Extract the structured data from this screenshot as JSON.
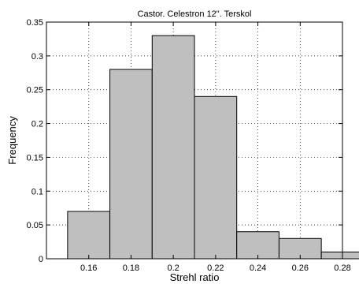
{
  "chart_data": {
    "type": "bar",
    "title": "Castor. Celestron 12\". Terskol",
    "xlabel": "Strehl ratio",
    "ylabel": "Frequency",
    "xlim": [
      0.14,
      0.28
    ],
    "ylim": [
      0,
      0.35
    ],
    "xticks": [
      "0.16",
      "0.18",
      "0.2",
      "0.22",
      "0.24",
      "0.26",
      "0.28"
    ],
    "yticks": [
      "0",
      "0.05",
      "0.1",
      "0.15",
      "0.2",
      "0.25",
      "0.3",
      "0.35"
    ],
    "grid": true,
    "bin_width": 0.02,
    "bins": [
      {
        "center": 0.16,
        "value": 0.07
      },
      {
        "center": 0.18,
        "value": 0.28
      },
      {
        "center": 0.2,
        "value": 0.33
      },
      {
        "center": 0.22,
        "value": 0.24
      },
      {
        "center": 0.24,
        "value": 0.04
      },
      {
        "center": 0.26,
        "value": 0.03
      },
      {
        "center": 0.28,
        "value": 0.01
      }
    ],
    "colors": {
      "bar_fill": "#bfbfbf",
      "bar_edge": "#000000",
      "grid": "#000000"
    }
  }
}
